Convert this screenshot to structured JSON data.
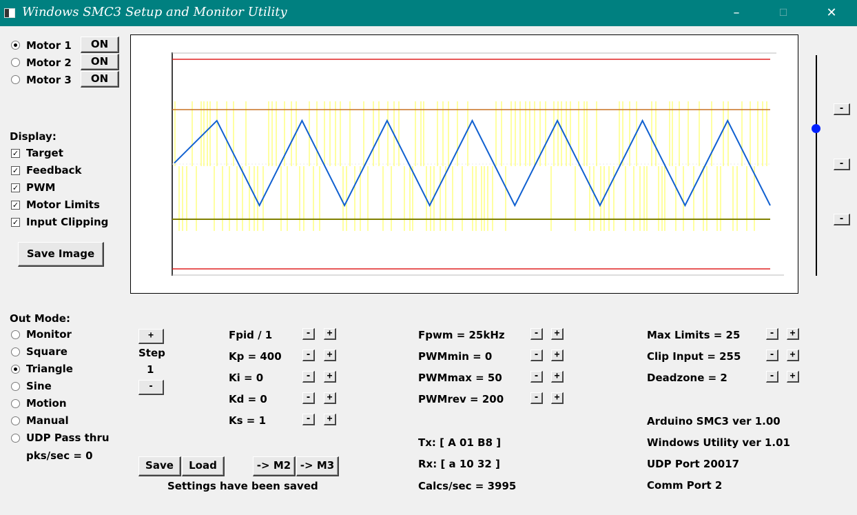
{
  "window": {
    "title": "Windows SMC3 Setup and Monitor Utility",
    "minimize_glyph": "–",
    "maximize_glyph": "☐",
    "close_glyph": "✕"
  },
  "motors": [
    {
      "label": "Motor 1",
      "selected": true,
      "button": "ON"
    },
    {
      "label": "Motor 2",
      "selected": false,
      "button": "ON"
    },
    {
      "label": "Motor 3",
      "selected": false,
      "button": "ON"
    }
  ],
  "display": {
    "heading": "Display:",
    "options": [
      {
        "label": "Target",
        "checked": true
      },
      {
        "label": "Feedback",
        "checked": true
      },
      {
        "label": "PWM",
        "checked": true
      },
      {
        "label": "Motor Limits",
        "checked": true
      },
      {
        "label": "Input Clipping",
        "checked": true
      }
    ],
    "save_image": "Save Image"
  },
  "out_mode": {
    "heading": "Out Mode:",
    "options": [
      {
        "label": "Monitor",
        "selected": false
      },
      {
        "label": "Square",
        "selected": false
      },
      {
        "label": "Triangle",
        "selected": true
      },
      {
        "label": "Sine",
        "selected": false
      },
      {
        "label": "Motion",
        "selected": false
      },
      {
        "label": "Manual",
        "selected": false
      },
      {
        "label": "UDP Pass thru",
        "selected": false
      }
    ],
    "pks_sec": "pks/sec = 0"
  },
  "step": {
    "plus": "+",
    "label": "Step",
    "value": "1",
    "minus": "-"
  },
  "params_col1": [
    "Fpid / 1",
    "Kp = 400",
    "Ki = 0",
    "Kd = 0",
    "Ks = 1"
  ],
  "params_col2": [
    "Fpwm = 25kHz",
    "PWMmin = 0",
    "PWMmax = 50",
    "PWMrev = 200"
  ],
  "params_col3": [
    "Max Limits = 25",
    "Clip Input = 255",
    "Deadzone = 2"
  ],
  "pm": {
    "minus": "-",
    "plus": "+"
  },
  "buttons": {
    "save": "Save",
    "load": "Load",
    "to_m2": "-> M2",
    "to_m3": "-> M3"
  },
  "status": {
    "settings": "Settings have been saved",
    "tx": "Tx: [ A 01 B8 ]",
    "rx": "Rx: [ a 10 32 ]",
    "calcs": "Calcs/sec = 3995"
  },
  "info": {
    "arduino": "Arduino SMC3 ver 1.00",
    "utility": "Windows Utility ver 1.01",
    "udp": "UDP Port 20017",
    "comm": "Comm Port 2"
  },
  "slider": {
    "level": 0.33,
    "buttons": [
      "-",
      "-",
      "-"
    ]
  },
  "colors": {
    "titlebar": "#008080",
    "limit_red": "#e02020",
    "clip_orange": "#c87020",
    "pwm_yellow": "#ffff40",
    "feedback_olive": "#808000",
    "target_blue": "#1060d0",
    "slider_blue": "#0020ff"
  },
  "chart_data": {
    "type": "line",
    "series": [
      {
        "values": [
          0.5,
          1,
          0,
          1,
          0,
          1,
          0,
          1,
          0,
          1,
          0,
          1,
          0,
          1,
          0
        ]
      }
    ]
  }
}
